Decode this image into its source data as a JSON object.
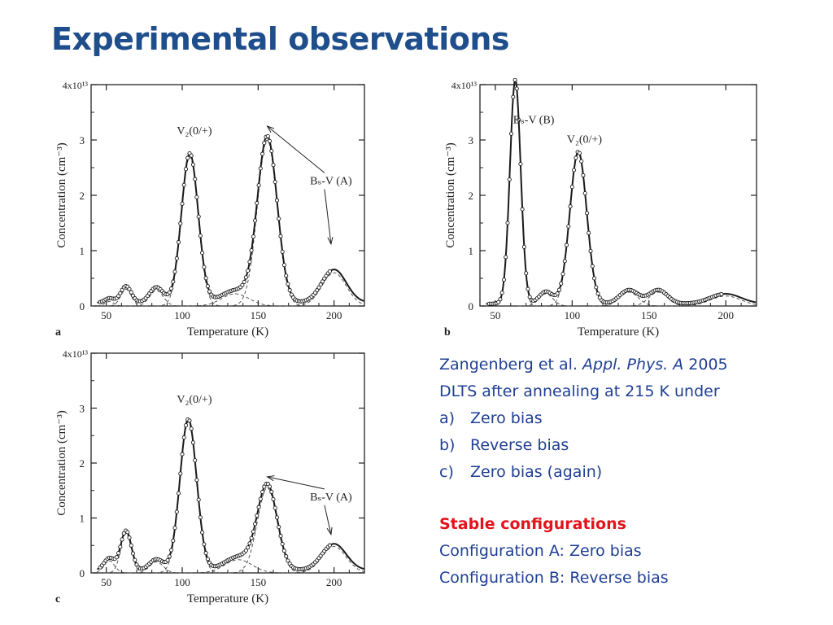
{
  "slide": {
    "title": "Experimental observations"
  },
  "text_panel": {
    "citation_authors": "Zangenberg et al.",
    "citation_journal": "Appl. Phys. A",
    "citation_year": "2005",
    "intro": "DLTS after annealing at 215 K under",
    "items": [
      {
        "marker": "a)",
        "text": "Zero bias"
      },
      {
        "marker": "b)",
        "text": "Reverse bias"
      },
      {
        "marker": "c)",
        "text": "Zero bias (again)"
      }
    ],
    "section_heading": "Stable configurations",
    "config_lines": [
      "Configuration A: Zero bias",
      "Configuration B: Reverse bias"
    ],
    "colors": {
      "body": "#1f3f94",
      "heading": "#e3131b",
      "title": "#1f4e8c"
    }
  },
  "chart_data": [
    {
      "type": "line",
      "panel_label": "a",
      "xlabel": "Temperature (K)",
      "ylabel": "Concentration (cm⁻³)",
      "xlim": [
        40,
        220
      ],
      "ylim": [
        0,
        4
      ],
      "x_ticks": [
        50,
        100,
        150,
        200
      ],
      "y_ticks": [
        0,
        1,
        2,
        3,
        4
      ],
      "y_top_label": "4x10¹³",
      "peaks": [
        {
          "center": 52,
          "height": 0.08,
          "width": 3
        },
        {
          "center": 63,
          "height": 0.3,
          "width": 3.5
        },
        {
          "center": 83,
          "height": 0.28,
          "width": 4.5
        },
        {
          "center": 105,
          "height": 2.7,
          "width": 5.5
        },
        {
          "center": 135,
          "height": 0.22,
          "width": 9
        },
        {
          "center": 156,
          "height": 3.0,
          "width": 6.5
        },
        {
          "center": 200,
          "height": 0.6,
          "width": 8
        }
      ],
      "baseline": 0.06,
      "annotations": [
        {
          "text": "V₂(0/+)",
          "x": 108,
          "y": 3.1
        },
        {
          "text": "Bₛ-V (A)",
          "x": 198,
          "y": 2.2
        }
      ],
      "arrow_to": [
        {
          "x": 156,
          "y": 3.25
        },
        {
          "x": 198,
          "y": 1.12
        }
      ]
    },
    {
      "type": "line",
      "panel_label": "b",
      "xlabel": "Temperature (K)",
      "ylabel": "Concentration (cm⁻³)",
      "xlim": [
        40,
        220
      ],
      "ylim": [
        0,
        4
      ],
      "x_ticks": [
        50,
        100,
        150,
        200
      ],
      "y_ticks": [
        0,
        1,
        2,
        3,
        4
      ],
      "y_top_label": "4x10¹³",
      "peaks": [
        {
          "center": 63,
          "height": 4.05,
          "width": 3.5
        },
        {
          "center": 83,
          "height": 0.22,
          "width": 4.5
        },
        {
          "center": 104,
          "height": 2.75,
          "width": 5.5
        },
        {
          "center": 137,
          "height": 0.25,
          "width": 6
        },
        {
          "center": 156,
          "height": 0.25,
          "width": 6
        },
        {
          "center": 200,
          "height": 0.18,
          "width": 10
        }
      ],
      "baseline": 0.04,
      "annotations": [
        {
          "text": "Bₛ-V (B)",
          "x": 75,
          "y": 3.3
        },
        {
          "text": "V₂(0/+)",
          "x": 108,
          "y": 2.95
        }
      ]
    },
    {
      "type": "line",
      "panel_label": "c",
      "xlabel": "Temperature (K)",
      "ylabel": "Concentration (cm⁻³)",
      "xlim": [
        40,
        220
      ],
      "ylim": [
        0,
        4
      ],
      "x_ticks": [
        50,
        100,
        150,
        200
      ],
      "y_ticks": [
        0,
        1,
        2,
        3,
        4
      ],
      "y_top_label": "4x10¹³",
      "peaks": [
        {
          "center": 52,
          "height": 0.22,
          "width": 3.5
        },
        {
          "center": 63,
          "height": 0.72,
          "width": 3.5
        },
        {
          "center": 83,
          "height": 0.2,
          "width": 4.5
        },
        {
          "center": 104,
          "height": 2.75,
          "width": 5.5
        },
        {
          "center": 137,
          "height": 0.24,
          "width": 9
        },
        {
          "center": 156,
          "height": 1.55,
          "width": 6.5
        },
        {
          "center": 200,
          "height": 0.48,
          "width": 8
        }
      ],
      "baseline": 0.05,
      "annotations": [
        {
          "text": "V₂(0/+)",
          "x": 108,
          "y": 3.1
        },
        {
          "text": "Bₛ-V (A)",
          "x": 198,
          "y": 1.32
        }
      ],
      "arrow_to": [
        {
          "x": 156,
          "y": 1.75
        },
        {
          "x": 198,
          "y": 0.7
        }
      ]
    }
  ]
}
